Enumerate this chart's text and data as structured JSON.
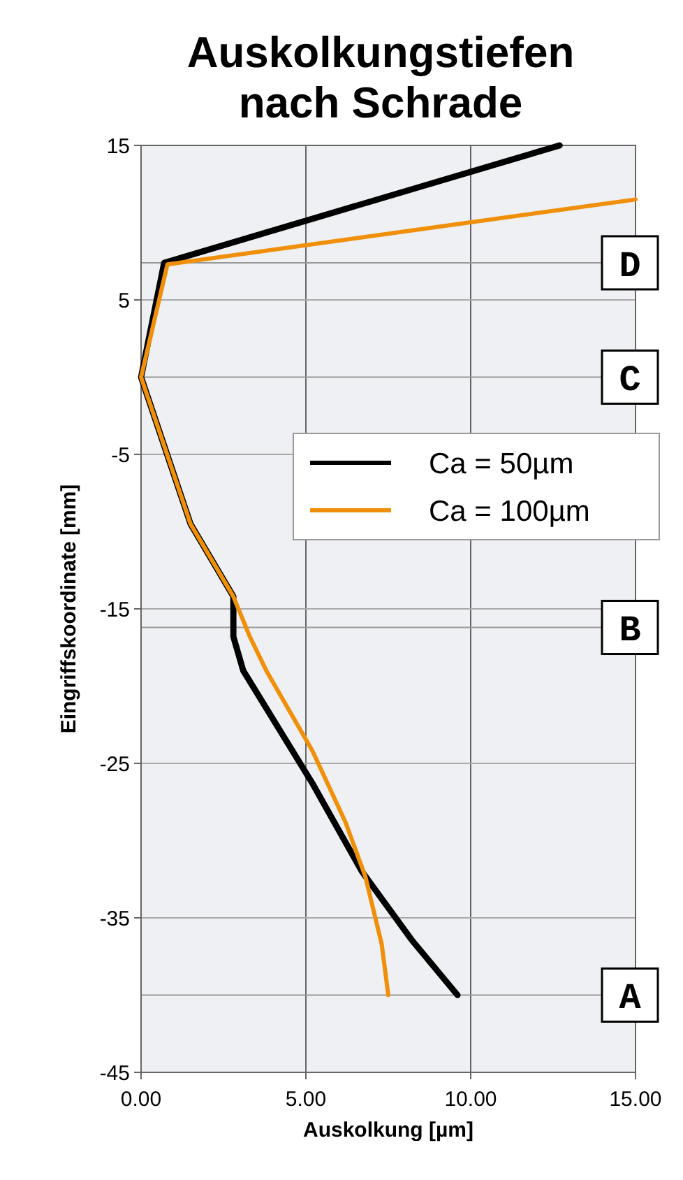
{
  "chart_data": {
    "type": "line",
    "title": "Auskolkungstiefen nach Schrade",
    "xlabel": "Auskolkung [µm]",
    "ylabel": "Eingriffskoordinate [mm]",
    "xlim": [
      0,
      15
    ],
    "xticks": [
      {
        "value": 0,
        "label": "0.00"
      },
      {
        "value": 5,
        "label": "5.00"
      },
      {
        "value": 10,
        "label": "10.00"
      },
      {
        "value": 15,
        "label": "15.00"
      }
    ],
    "ylim": [
      -45,
      15
    ],
    "yticks": [
      15,
      5,
      -5,
      -15,
      -25,
      -35,
      -45
    ],
    "grid": true,
    "legend": "right",
    "series": [
      {
        "name": "Ca = 50µm",
        "color": "#000000",
        "x": [
          12.7,
          0.7,
          0,
          1.5,
          2.8,
          2.8,
          3.1,
          5.2,
          6.7,
          8.2,
          9.6
        ],
        "values": [
          15,
          7.4,
          0,
          -9.5,
          -14.2,
          -16.8,
          -19,
          -26.3,
          -32,
          -36.4,
          -40
        ]
      },
      {
        "name": "Ca = 100µm",
        "color": "#f0900a",
        "x": [
          15,
          0.8,
          0,
          1.5,
          2.8,
          3.3,
          3.8,
          5.2,
          6.2,
          6.8,
          7.3,
          7.5
        ],
        "values": [
          11.5,
          7.3,
          0,
          -9.5,
          -14.2,
          -16.8,
          -19,
          -24.2,
          -28.8,
          -32.3,
          -36.7,
          -40
        ]
      }
    ],
    "ref_lines": [
      {
        "axis": "y",
        "value": -40,
        "label": "A"
      },
      {
        "axis": "y",
        "value": -16.2,
        "label": "B"
      },
      {
        "axis": "y",
        "value": 0,
        "label": "C"
      },
      {
        "axis": "y",
        "value": 7.4,
        "label": "D"
      }
    ]
  }
}
